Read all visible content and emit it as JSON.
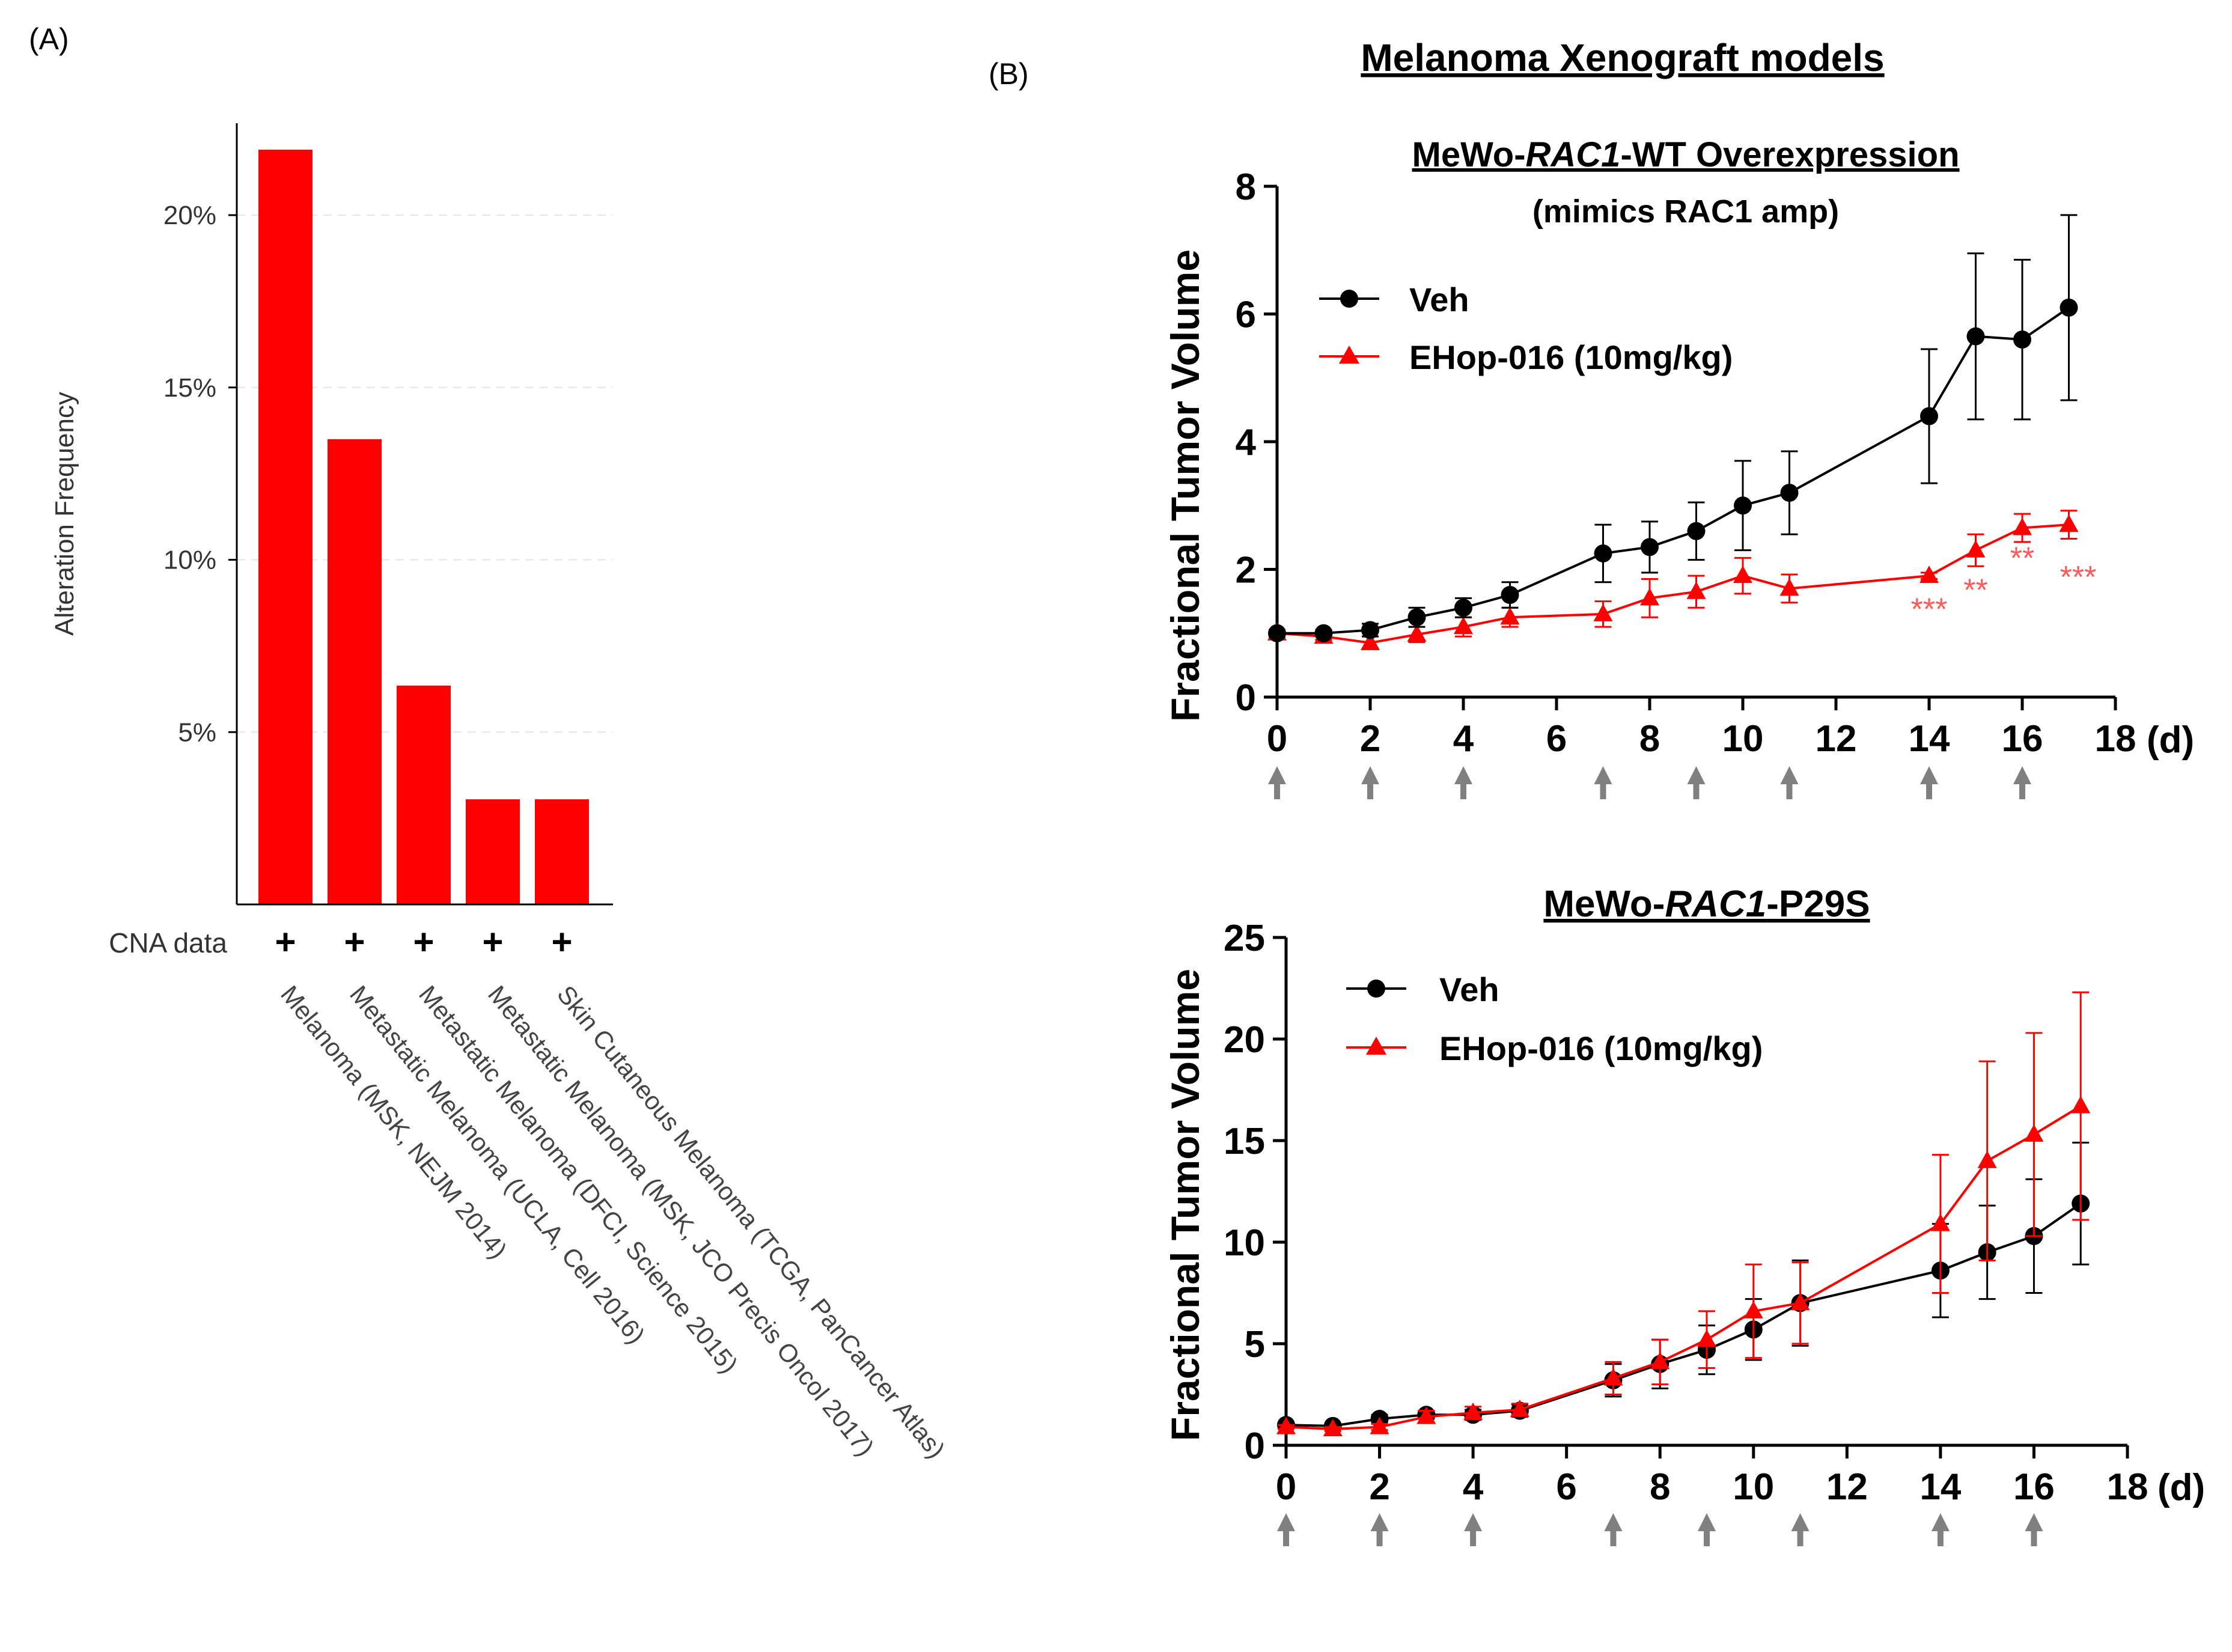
{
  "panel_labels": {
    "a": "(A)",
    "b": "(B)"
  },
  "colors": {
    "veh": "#000000",
    "ehop": "#ff0000",
    "bar": "#ff0000",
    "arrow": "#808080",
    "grid": "#e6e6e6",
    "star": "#ff5a5a"
  },
  "chart_data": [
    {
      "type": "bar",
      "panel": "A",
      "categories": [
        "Melanoma (MSK, NEJM 2014)",
        "Metastatic Melanoma (UCLA, Cell 2016)",
        "Metastatic Melanoma (DFCI, Science 2015)",
        "Metastatic Melanoma (MSK, JCO Precis Oncol 2017)",
        "Skin Cutaneous Melanoma (TCGA, PanCancer Atlas)"
      ],
      "values": [
        21.9,
        13.5,
        6.35,
        3.05,
        3.05
      ],
      "ylabel": "Alteration Frequency",
      "ylim": [
        0,
        22.5
      ],
      "yticks": [
        5,
        10,
        15,
        20
      ],
      "ytick_labels": [
        "5%",
        "10%",
        "15%",
        "20%"
      ],
      "cna_label": "CNA data",
      "cna_marks": [
        "+",
        "+",
        "+",
        "+",
        "+"
      ]
    },
    {
      "type": "line",
      "panel": "B-top",
      "section_title": "Melanoma Xenograft models",
      "title_prefix": "MeWo-",
      "title_italic": "RAC1",
      "title_suffix": "-WT Overexpression",
      "subtitle": "(mimics RAC1 amp)",
      "ylabel": "Fractional Tumor Volume",
      "xlim": [
        0,
        18
      ],
      "ylim": [
        0,
        8
      ],
      "xticks": [
        0,
        2,
        4,
        6,
        8,
        10,
        12,
        14,
        16,
        18
      ],
      "yticks": [
        0,
        2,
        4,
        6,
        8
      ],
      "xunit": "(d)",
      "dosing_days": [
        0,
        2,
        4,
        7,
        9,
        11,
        14,
        16
      ],
      "series": [
        {
          "name": "Veh",
          "marker": "circle",
          "x": [
            0,
            1,
            2,
            3,
            4,
            5,
            7,
            8,
            9,
            10,
            11,
            14,
            15,
            16,
            17
          ],
          "y": [
            1.0,
            1.0,
            1.05,
            1.25,
            1.4,
            1.6,
            2.25,
            2.35,
            2.6,
            3.0,
            3.2,
            4.4,
            5.65,
            5.6,
            6.1
          ],
          "err": [
            0.05,
            0.05,
            0.1,
            0.15,
            0.15,
            0.2,
            0.45,
            0.4,
            0.45,
            0.7,
            0.65,
            1.05,
            1.3,
            1.25,
            1.45
          ]
        },
        {
          "name": "EHop-016 (10mg/kg)",
          "marker": "triangle",
          "x": [
            0,
            1,
            2,
            3,
            4,
            5,
            7,
            8,
            9,
            10,
            11,
            14,
            15,
            16,
            17
          ],
          "y": [
            1.0,
            0.95,
            0.85,
            0.98,
            1.1,
            1.25,
            1.3,
            1.55,
            1.65,
            1.9,
            1.7,
            1.9,
            2.3,
            2.65,
            2.7
          ],
          "err": [
            0.05,
            0.05,
            0.1,
            0.12,
            0.15,
            0.15,
            0.2,
            0.3,
            0.25,
            0.28,
            0.22,
            0.05,
            0.25,
            0.22,
            0.22
          ]
        }
      ],
      "annotations": [
        {
          "x": 14,
          "y": 1.4,
          "text": "***"
        },
        {
          "x": 15,
          "y": 1.7,
          "text": "**"
        },
        {
          "x": 16,
          "y": 2.2,
          "text": "**"
        },
        {
          "x": 17.2,
          "y": 1.9,
          "text": "***"
        }
      ]
    },
    {
      "type": "line",
      "panel": "B-bottom",
      "title_prefix": "MeWo-",
      "title_italic": "RAC1",
      "title_suffix": "-P29S",
      "ylabel": "Fractional Tumor Volume",
      "xlim": [
        0,
        18
      ],
      "ylim": [
        0,
        25
      ],
      "xticks": [
        0,
        2,
        4,
        6,
        8,
        10,
        12,
        14,
        16,
        18
      ],
      "yticks": [
        0,
        5,
        10,
        15,
        20,
        25
      ],
      "xunit": "(d)",
      "dosing_days": [
        0,
        2,
        4,
        7,
        9,
        11,
        14,
        16
      ],
      "series": [
        {
          "name": "Veh",
          "marker": "circle",
          "x": [
            0,
            1,
            2,
            3,
            4,
            5,
            7,
            8,
            9,
            10,
            11,
            14,
            15,
            16,
            17
          ],
          "y": [
            1.0,
            0.95,
            1.3,
            1.5,
            1.5,
            1.7,
            3.2,
            4.0,
            4.7,
            5.7,
            7.0,
            8.6,
            9.5,
            10.3,
            11.9
          ],
          "err": [
            0.1,
            0.1,
            0.2,
            0.2,
            0.25,
            0.3,
            0.8,
            1.2,
            1.2,
            1.5,
            2.1,
            2.3,
            2.3,
            2.8,
            3.0
          ]
        },
        {
          "name": "EHop-016 (10mg/kg)",
          "marker": "triangle",
          "x": [
            0,
            1,
            2,
            3,
            4,
            5,
            7,
            8,
            9,
            10,
            11,
            14,
            15,
            16,
            17
          ],
          "y": [
            0.9,
            0.8,
            0.9,
            1.4,
            1.6,
            1.75,
            3.3,
            4.1,
            5.2,
            6.6,
            7.0,
            10.9,
            14.0,
            15.3,
            16.7
          ],
          "err": [
            0.1,
            0.1,
            0.15,
            0.3,
            0.3,
            0.3,
            0.8,
            1.1,
            1.4,
            2.3,
            2.0,
            3.4,
            4.9,
            5.0,
            5.6
          ]
        }
      ]
    }
  ]
}
